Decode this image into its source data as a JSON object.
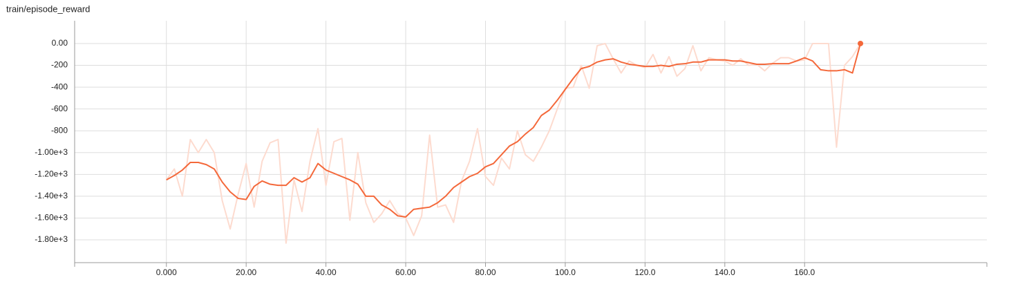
{
  "chart_data": {
    "type": "line",
    "title": "train/episode_reward",
    "x": [
      0,
      2,
      4,
      6,
      8,
      10,
      12,
      14,
      16,
      18,
      20,
      22,
      24,
      26,
      28,
      30,
      32,
      34,
      36,
      38,
      40,
      42,
      44,
      46,
      48,
      50,
      52,
      54,
      56,
      58,
      60,
      62,
      64,
      66,
      68,
      70,
      72,
      74,
      76,
      78,
      80,
      82,
      84,
      86,
      88,
      90,
      92,
      94,
      96,
      98,
      100,
      102,
      104,
      106,
      108,
      110,
      112,
      114,
      116,
      118,
      120,
      122,
      124,
      126,
      128,
      130,
      132,
      134,
      136,
      138,
      140,
      142,
      144,
      146,
      148,
      150,
      152,
      154,
      156,
      158,
      160,
      162,
      164,
      166,
      168,
      170,
      172,
      174
    ],
    "series": [
      {
        "color": "#fddbcf",
        "values": [
          -1250,
          -1150,
          -1400,
          -880,
          -1000,
          -880,
          -1000,
          -1440,
          -1700,
          -1380,
          -1100,
          -1500,
          -1080,
          -910,
          -880,
          -1830,
          -1250,
          -1540,
          -1080,
          -780,
          -1300,
          -900,
          -870,
          -1620,
          -1000,
          -1460,
          -1640,
          -1560,
          -1440,
          -1560,
          -1600,
          -1760,
          -1580,
          -840,
          -1500,
          -1480,
          -1640,
          -1260,
          -1080,
          -780,
          -1220,
          -1300,
          -1050,
          -1150,
          -800,
          -1020,
          -1080,
          -950,
          -800,
          -600,
          -410,
          -400,
          -200,
          -410,
          -20,
          0,
          -140,
          -270,
          -160,
          -200,
          -220,
          -100,
          -270,
          -120,
          -300,
          -230,
          -20,
          -250,
          -130,
          -150,
          -160,
          -200,
          -140,
          -200,
          -190,
          -250,
          -180,
          -130,
          -130,
          -160,
          -150,
          0,
          0,
          0,
          -950,
          -200,
          -120,
          0
        ]
      },
      {
        "color": "#f4683a",
        "values": [
          -1250,
          -1210,
          -1160,
          -1090,
          -1090,
          -1110,
          -1150,
          -1270,
          -1360,
          -1420,
          -1430,
          -1310,
          -1260,
          -1290,
          -1300,
          -1300,
          -1230,
          -1270,
          -1230,
          -1100,
          -1160,
          -1190,
          -1220,
          -1250,
          -1290,
          -1400,
          -1400,
          -1480,
          -1520,
          -1580,
          -1590,
          -1520,
          -1510,
          -1500,
          -1460,
          -1400,
          -1320,
          -1270,
          -1220,
          -1190,
          -1130,
          -1100,
          -1020,
          -940,
          -900,
          -830,
          -770,
          -660,
          -610,
          -520,
          -420,
          -320,
          -230,
          -210,
          -170,
          -150,
          -140,
          -170,
          -190,
          -200,
          -210,
          -210,
          -200,
          -210,
          -190,
          -185,
          -170,
          -170,
          -150,
          -150,
          -150,
          -160,
          -160,
          -175,
          -190,
          -190,
          -185,
          -185,
          -185,
          -160,
          -130,
          -160,
          -240,
          -250,
          -250,
          -240,
          -270,
          0
        ]
      }
    ],
    "xlim": [
      -23,
      205.7
    ],
    "ylim": [
      -2009,
      209
    ],
    "xticks": [
      {
        "value": 0,
        "label": "0.000"
      },
      {
        "value": 20,
        "label": "20.00"
      },
      {
        "value": 40,
        "label": "40.00"
      },
      {
        "value": 60,
        "label": "60.00"
      },
      {
        "value": 80,
        "label": "80.00"
      },
      {
        "value": 100,
        "label": "100.0"
      },
      {
        "value": 120,
        "label": "120.0"
      },
      {
        "value": 140,
        "label": "140.0"
      },
      {
        "value": 160,
        "label": "160.0"
      }
    ],
    "yticks": [
      {
        "value": 0,
        "label": "0.00"
      },
      -200,
      -400,
      -600,
      -800,
      {
        "value": -1000,
        "label": "-1.00e+3"
      },
      {
        "value": -1200,
        "label": "-1.20e+3"
      },
      {
        "value": -1400,
        "label": "-1.40e+3"
      },
      {
        "value": -1600,
        "label": "-1.60e+3"
      },
      {
        "value": -1800,
        "label": "-1.80e+3"
      }
    ],
    "grid": true
  }
}
